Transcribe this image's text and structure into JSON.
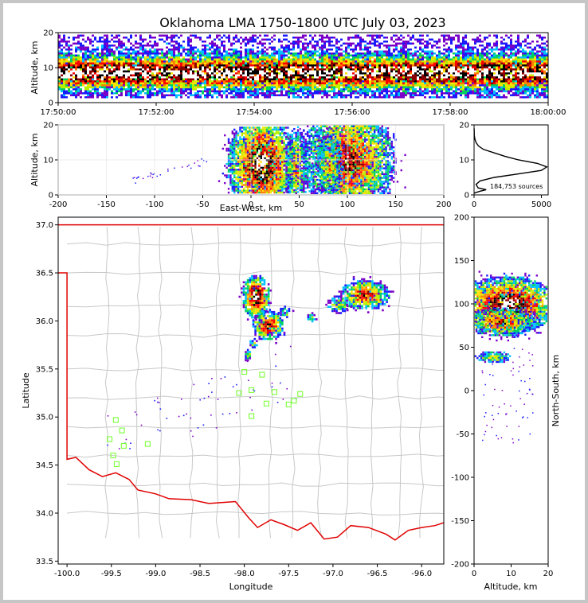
{
  "title": "Oklahoma LMA 1750-1800 UTC July 03, 2023",
  "chart_data": [
    {
      "id": "time-height",
      "type": "heatmap",
      "xlabel": "",
      "ylabel": "Altitude, km",
      "x_ticks": [
        "17:50:00",
        "17:52:00",
        "17:54:00",
        "17:56:00",
        "17:58:00",
        "18:00:00"
      ],
      "ylim": [
        0,
        20
      ],
      "y_ticks": [
        0,
        10,
        20
      ],
      "band": {
        "core_km": [
          5,
          12
        ],
        "outer_km": [
          1,
          19
        ]
      }
    },
    {
      "id": "east-west-altitude",
      "type": "heatmap",
      "xlabel": "East-West, km",
      "ylabel": "Altitude, km",
      "xlim": [
        -200,
        200
      ],
      "ylim": [
        0,
        20
      ],
      "x_ticks": [
        -200,
        -150,
        -100,
        -50,
        0,
        50,
        100,
        150,
        200
      ],
      "y_ticks": [
        0,
        10,
        20
      ],
      "clusters": [
        {
          "x": 10,
          "alt": 9,
          "w": 30,
          "h": 12,
          "level": 1.0
        },
        {
          "x": 46,
          "alt": 8,
          "w": 10,
          "h": 10,
          "level": 0.6
        },
        {
          "x": 100,
          "alt": 10,
          "w": 40,
          "h": 14,
          "level": 0.8
        },
        {
          "x": 80,
          "alt": 9,
          "w": 12,
          "h": 8,
          "level": 0.55
        }
      ]
    },
    {
      "id": "altitude-histogram",
      "type": "line",
      "ylim": [
        0,
        20
      ],
      "xlim": [
        0,
        5500
      ],
      "x_ticks": [
        0,
        5000
      ],
      "y_ticks": [
        0,
        10,
        20
      ],
      "annotation": "184,753 sources",
      "profile": [
        [
          0,
          0.5
        ],
        [
          400,
          1
        ],
        [
          900,
          1.5
        ],
        [
          300,
          2
        ],
        [
          150,
          3
        ],
        [
          450,
          4
        ],
        [
          1500,
          5
        ],
        [
          3300,
          6
        ],
        [
          5000,
          7
        ],
        [
          5400,
          8
        ],
        [
          4700,
          9
        ],
        [
          3300,
          10
        ],
        [
          2300,
          11
        ],
        [
          1500,
          12
        ],
        [
          700,
          13
        ],
        [
          320,
          14
        ],
        [
          140,
          15
        ],
        [
          60,
          16
        ],
        [
          20,
          17
        ],
        [
          5,
          19
        ]
      ]
    },
    {
      "id": "plan-view",
      "type": "scatter",
      "xlabel": "Longitude",
      "ylabel": "Latitude",
      "xlim": [
        -100.1,
        -95.75
      ],
      "ylim": [
        33.47,
        37.08
      ],
      "x_ticks": [
        -100.0,
        -99.5,
        -99.0,
        -98.5,
        -98.0,
        -97.5,
        -97.0,
        -96.5,
        -96.0
      ],
      "y_ticks": [
        33.5,
        34.0,
        34.5,
        35.0,
        35.5,
        36.0,
        36.5,
        37.0
      ],
      "clusters": [
        {
          "lon": -97.88,
          "lat": 36.26,
          "rx": 0.13,
          "ry": 0.19,
          "level": 1.0
        },
        {
          "lon": -97.74,
          "lat": 35.96,
          "rx": 0.15,
          "ry": 0.13,
          "level": 0.85
        },
        {
          "lon": -97.55,
          "lat": 36.1,
          "rx": 0.06,
          "ry": 0.05,
          "level": 0.5
        },
        {
          "lon": -97.25,
          "lat": 36.05,
          "rx": 0.04,
          "ry": 0.04,
          "level": 0.4
        },
        {
          "lon": -96.65,
          "lat": 36.28,
          "rx": 0.24,
          "ry": 0.13,
          "level": 0.8
        },
        {
          "lon": -96.95,
          "lat": 36.18,
          "rx": 0.1,
          "ry": 0.08,
          "level": 0.55
        },
        {
          "lon": -97.97,
          "lat": 35.65,
          "rx": 0.03,
          "ry": 0.05,
          "level": 0.5
        },
        {
          "lon": -97.9,
          "lat": 35.78,
          "rx": 0.04,
          "ry": 0.04,
          "level": 0.5
        }
      ],
      "stations": [
        [
          -99.52,
          34.77
        ],
        [
          -99.45,
          34.97
        ],
        [
          -99.38,
          34.86
        ],
        [
          -99.36,
          34.7
        ],
        [
          -99.48,
          34.6
        ],
        [
          -99.44,
          34.51
        ],
        [
          -99.09,
          34.72
        ],
        [
          -98.06,
          35.25
        ],
        [
          -98.0,
          35.47
        ],
        [
          -97.92,
          35.28
        ],
        [
          -97.8,
          35.44
        ],
        [
          -97.66,
          35.26
        ],
        [
          -97.75,
          35.14
        ],
        [
          -97.92,
          35.01
        ],
        [
          -97.5,
          35.13
        ],
        [
          -97.44,
          35.17
        ],
        [
          -97.37,
          35.24
        ]
      ]
    },
    {
      "id": "altitude-north-south",
      "type": "heatmap",
      "xlabel": "Altitude, km",
      "ylabel": "North-South, km",
      "xlim": [
        0,
        20
      ],
      "ylim": [
        -200,
        200
      ],
      "x_ticks": [
        0,
        10,
        20
      ],
      "y_ticks": [
        -200,
        -150,
        -100,
        -50,
        0,
        50,
        100,
        150,
        200
      ],
      "clusters": [
        {
          "alt": 9,
          "ns": 100,
          "w": 11,
          "h": 28,
          "level": 1.0
        },
        {
          "alt": 7,
          "ns": 80,
          "w": 8,
          "h": 14,
          "level": 0.75
        },
        {
          "alt": 5,
          "ns": 40,
          "w": 4,
          "h": 6,
          "level": 0.5
        }
      ]
    }
  ],
  "colors": {
    "boundary": "#e00000",
    "counties": "#c8c8c8",
    "stations": "#7cff3a",
    "palette": [
      "#7b00c8",
      "#1a1aff",
      "#00c0ff",
      "#00d060",
      "#b8f000",
      "#ffe000",
      "#ff8000",
      "#ff0000",
      "#8b0000",
      "#000000",
      "#ffffff"
    ]
  }
}
